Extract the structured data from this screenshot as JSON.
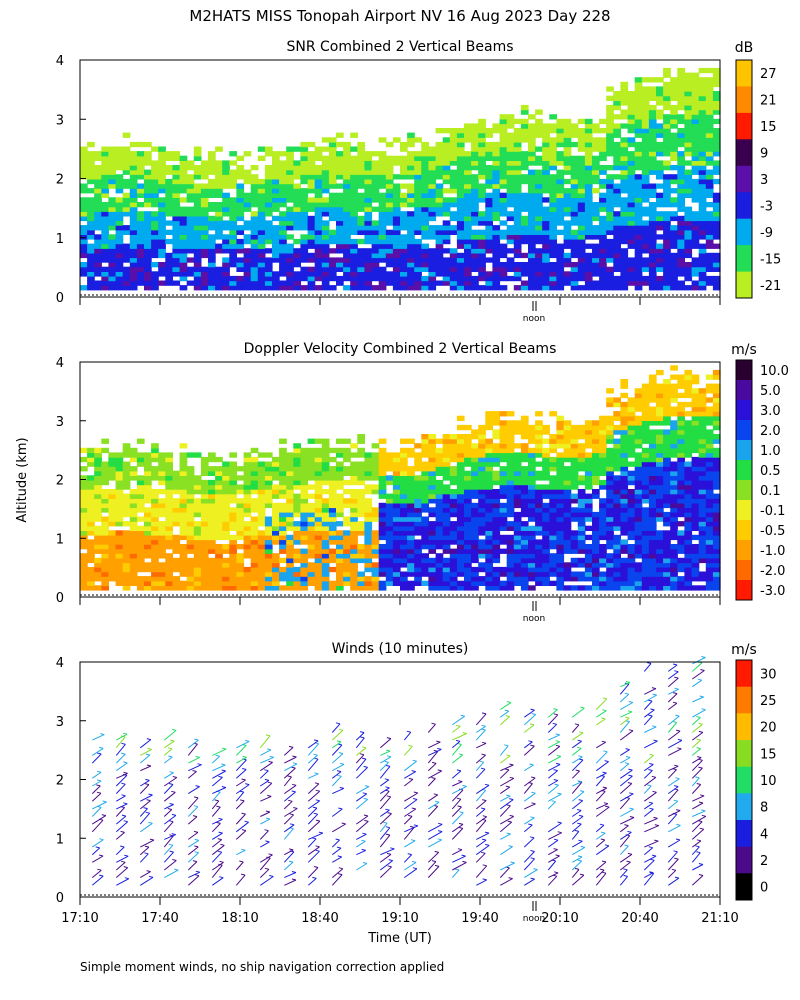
{
  "title": "M2HATS MISS Tonopah Airport NV  16 Aug 2023 Day 228",
  "ylabel": "Altitude (km)",
  "xlabel": "Time (UT)",
  "footnote": "Simple moment winds, no ship navigation correction applied",
  "noon_label": "noon",
  "chart_data": [
    {
      "type": "heatmap",
      "title": "SNR Combined 2 Vertical Beams",
      "colorbar": {
        "unit": "dB",
        "ticks": [
          "27",
          "21",
          "15",
          "9",
          "3",
          "-3",
          "-9",
          "-15",
          "-21"
        ],
        "colors": [
          "#ffc400",
          "#ff8a00",
          "#ff1a00",
          "#3a0050",
          "#5a10a8",
          "#1a1ee0",
          "#00aaee",
          "#22dd55",
          "#b8ee22"
        ]
      },
      "yticks": [
        "4",
        "3",
        "2",
        "1",
        "0"
      ],
      "ylim": [
        0,
        4
      ],
      "xlim": [
        0,
        10.4
      ]
    },
    {
      "type": "heatmap",
      "title": "Doppler Velocity Combined 2 Vertical Beams",
      "colorbar": {
        "unit": "m/s",
        "ticks": [
          "10.0",
          "5.0",
          "3.0",
          "2.0",
          "1.0",
          "0.5",
          "0.1",
          "-0.1",
          "-0.5",
          "-1.0",
          "-2.0",
          "-3.0"
        ],
        "colors": [
          "#2a0030",
          "#4a0aa0",
          "#2a10d8",
          "#0a44ee",
          "#1aa4ee",
          "#22dd44",
          "#8ae022",
          "#eef022",
          "#ffcc00",
          "#ffa000",
          "#ff6a00",
          "#ff1a00"
        ]
      },
      "yticks": [
        "4",
        "3",
        "2",
        "1",
        "0"
      ],
      "ylim": [
        0,
        4
      ],
      "xlim": [
        0,
        10.4
      ]
    },
    {
      "type": "scatter",
      "title": "Winds (10 minutes)",
      "colorbar": {
        "unit": "m/s",
        "ticks": [
          "30",
          "25",
          "20",
          "15",
          "10",
          "8",
          "4",
          "2",
          "0"
        ],
        "colors": [
          "#ff1a00",
          "#ff7a00",
          "#ffbb00",
          "#88dd22",
          "#22dd66",
          "#22aaee",
          "#1a1ee0",
          "#4a0a8a",
          "#000000"
        ]
      },
      "yticks": [
        "4",
        "3",
        "2",
        "1",
        "0"
      ],
      "xticks": [
        "17:10",
        "17:40",
        "18:10",
        "18:40",
        "19:10",
        "19:40",
        "20:10",
        "20:40",
        "21:10"
      ],
      "ylim": [
        0,
        4
      ],
      "xlim": [
        0,
        10.4
      ]
    }
  ]
}
